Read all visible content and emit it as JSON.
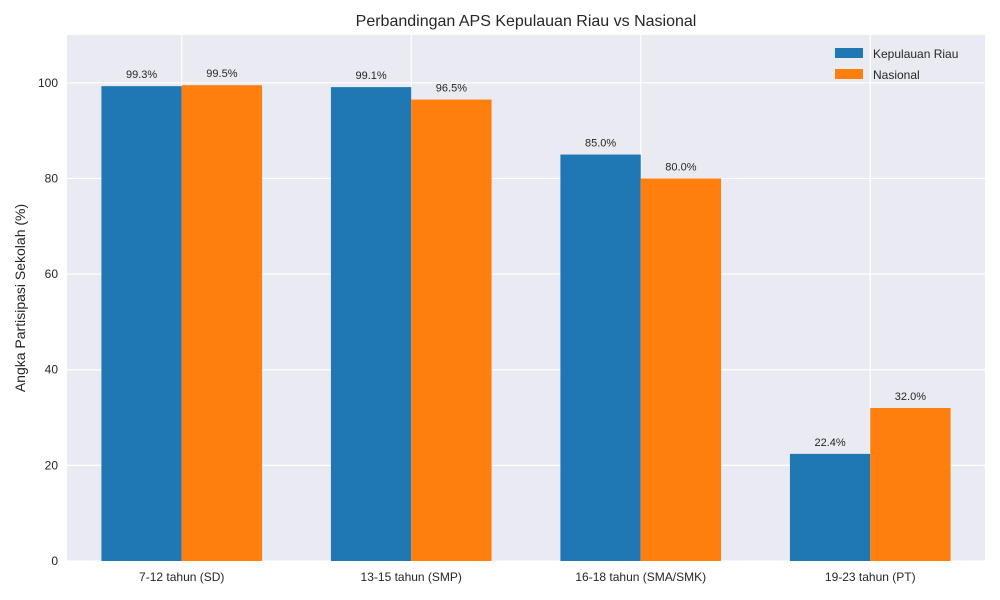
{
  "chart_data": {
    "type": "bar",
    "title": "Perbandingan APS Kepulauan Riau vs Nasional",
    "xlabel": "",
    "ylabel": "Angka Partisipasi Sekolah (%)",
    "ylim": [
      0,
      110
    ],
    "yticks": [
      0,
      20,
      40,
      60,
      80,
      100
    ],
    "categories": [
      "7-12 tahun (SD)",
      "13-15 tahun (SMP)",
      "16-18 tahun (SMA/SMK)",
      "19-23 tahun (PT)"
    ],
    "series": [
      {
        "name": "Kepulauan Riau",
        "color": "#1f77b4",
        "values": [
          99.3,
          99.1,
          85.0,
          22.4
        ],
        "labels": [
          "99.3%",
          "99.1%",
          "85.0%",
          "22.4%"
        ]
      },
      {
        "name": "Nasional",
        "color": "#ff7f0e",
        "values": [
          99.5,
          96.5,
          80.0,
          32.0
        ],
        "labels": [
          "99.5%",
          "96.5%",
          "80.0%",
          "32.0%"
        ]
      }
    ],
    "grid": true,
    "legend_position": "top-right",
    "background": "#eaeaf2"
  }
}
